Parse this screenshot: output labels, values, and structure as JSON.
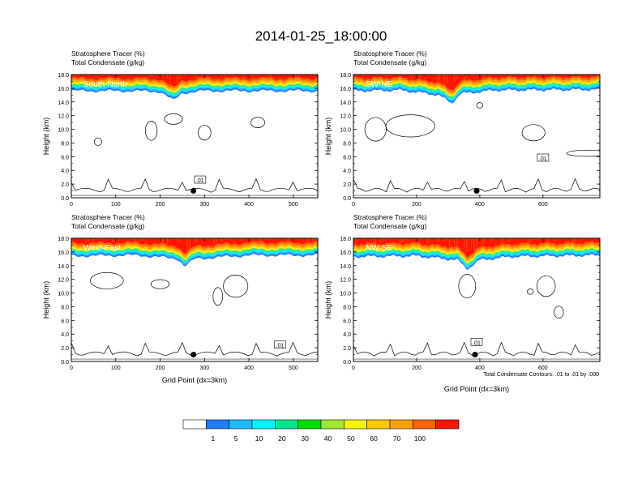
{
  "figure_title": "2014-01-25_18:00:00",
  "contour_info": "Total Condensate Contours: .01 to .01 by .000",
  "colorbar": {
    "labels": [
      "1",
      "5",
      "10",
      "20",
      "30",
      "40",
      "50",
      "60",
      "70",
      "100"
    ],
    "colors": [
      "#ffffff",
      "#1e7dff",
      "#1ebaff",
      "#00f5ff",
      "#00e68c",
      "#00dc00",
      "#a0e632",
      "#f5f500",
      "#ffc800",
      "#ffa000",
      "#ff6400",
      "#ff1400"
    ]
  },
  "chart_data": [
    {
      "type": "heatmap",
      "line1": "Stratosphere Tracer   (%)",
      "line2": "Total Condensate   (g/kg)",
      "panel_label": "South-North",
      "ylabel": "Height (km)",
      "xlabel": "",
      "xlim": [
        0,
        555
      ],
      "ylim": [
        0,
        18
      ],
      "xticks": [
        0,
        100,
        200,
        300,
        400,
        500
      ],
      "yticks": [
        "0.0",
        "2.0",
        "4.0",
        "6.0",
        "8.0",
        "10.0",
        "12.0",
        "14.0",
        "16.0",
        "18.0"
      ],
      "tracer_base_km": [
        [
          0,
          15.6
        ],
        [
          120,
          15.6
        ],
        [
          200,
          15.5
        ],
        [
          230,
          14.2
        ],
        [
          250,
          15.3
        ],
        [
          300,
          15.6
        ],
        [
          555,
          15.6
        ]
      ],
      "contour_label": ".01",
      "contour_label_pos": [
        290,
        2.6
      ],
      "marker": [
        275,
        1.0
      ]
    },
    {
      "type": "heatmap",
      "line1": "Stratosphere Tracer   (%)",
      "line2": "Total Condensate   (g/kg)",
      "panel_label": "SW-NE",
      "ylabel": "Height (km)",
      "xlabel": "",
      "xlim": [
        0,
        780
      ],
      "ylim": [
        0,
        18
      ],
      "xticks": [
        0,
        200,
        400,
        600
      ],
      "yticks": [
        "0.0",
        "2.0",
        "4.0",
        "6.0",
        "8.0",
        "10.0",
        "12.0",
        "14.0",
        "16.0",
        "18.0"
      ],
      "tracer_base_km": [
        [
          0,
          15.6
        ],
        [
          150,
          15.7
        ],
        [
          270,
          15.0
        ],
        [
          310,
          13.8
        ],
        [
          340,
          15.2
        ],
        [
          450,
          15.7
        ],
        [
          780,
          15.8
        ]
      ],
      "contour_label": ".01",
      "contour_label_pos": [
        600,
        5.8
      ],
      "marker": [
        390,
        1.0
      ]
    },
    {
      "type": "heatmap",
      "line1": "Stratosphere Tracer   (%)",
      "line2": "Total Condensate   (g/kg)",
      "panel_label": "West-East",
      "ylabel": "Height (km)",
      "xlabel": "Grid Point (dx=3km)",
      "xlim": [
        0,
        555
      ],
      "ylim": [
        0,
        18
      ],
      "xticks": [
        0,
        100,
        200,
        300,
        400,
        500
      ],
      "yticks": [
        "0.0",
        "2.0",
        "4.0",
        "6.0",
        "8.0",
        "10.0",
        "12.0",
        "14.0",
        "16.0",
        "18.0"
      ],
      "tracer_base_km": [
        [
          0,
          15.4
        ],
        [
          150,
          15.5
        ],
        [
          240,
          15.0
        ],
        [
          255,
          13.9
        ],
        [
          280,
          15.0
        ],
        [
          400,
          15.5
        ],
        [
          555,
          15.5
        ]
      ],
      "contour_label": ".01",
      "contour_label_pos": [
        470,
        2.4
      ],
      "marker": [
        275,
        1.0
      ]
    },
    {
      "type": "heatmap",
      "line1": "Stratosphere Tracer   (%)",
      "line2": "Total Condensate   (g/kg)",
      "panel_label": "NW-SE",
      "ylabel": "Height (km)",
      "xlabel": "Grid Point (dx=3km)",
      "xlim": [
        0,
        780
      ],
      "ylim": [
        0,
        18
      ],
      "xticks": [
        0,
        200,
        400,
        600
      ],
      "yticks": [
        "0.0",
        "2.0",
        "4.0",
        "6.0",
        "8.0",
        "10.0",
        "12.0",
        "14.0",
        "16.0",
        "18.0"
      ],
      "tracer_base_km": [
        [
          0,
          15.3
        ],
        [
          200,
          15.4
        ],
        [
          330,
          14.8
        ],
        [
          360,
          13.5
        ],
        [
          400,
          14.8
        ],
        [
          500,
          15.3
        ],
        [
          780,
          15.5
        ]
      ],
      "contour_label": ".01",
      "contour_label_pos": [
        390,
        2.8
      ],
      "marker": [
        385,
        1.0
      ]
    }
  ]
}
